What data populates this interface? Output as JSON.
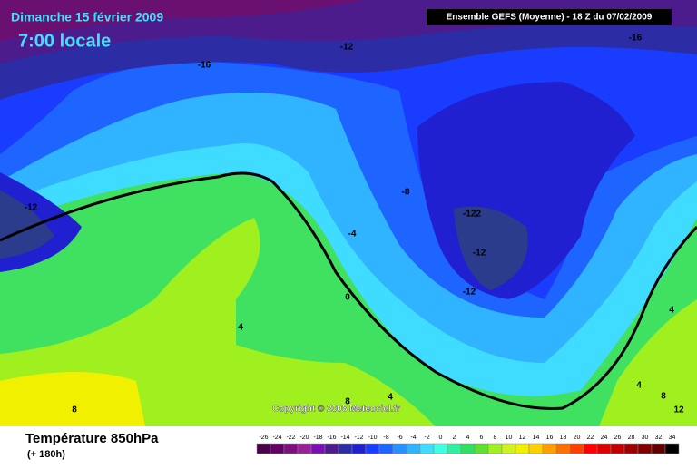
{
  "header": {
    "date": "Dimanche 15 février 2009",
    "time": "7:00 locale",
    "run": "Ensemble GEFS (Moyenne)  - 18 Z du 07/02/2009"
  },
  "map": {
    "contour_labels": [
      -16,
      -12,
      -16,
      -12,
      -8,
      -4,
      -122,
      -12,
      -12,
      0,
      4,
      4,
      4,
      4,
      8,
      8,
      8,
      12
    ],
    "copyright": "Copyright © 2008 Meteociel.fr"
  },
  "footer": {
    "title": "Température 850hPa",
    "lead": "(+ 180h)"
  },
  "scale": {
    "labels": [
      -26,
      -24,
      -22,
      -20,
      -18,
      -16,
      -14,
      -12,
      -10,
      -8,
      -6,
      -4,
      -2,
      0,
      2,
      4,
      6,
      8,
      10,
      12,
      14,
      16,
      18,
      20,
      22,
      24,
      26,
      28,
      30,
      32,
      34
    ],
    "colors": [
      "#4a004a",
      "#640064",
      "#7e107e",
      "#9a209a",
      "#7a10b4",
      "#4c1c8c",
      "#2c2ca4",
      "#2020d0",
      "#1a3cff",
      "#1e64ff",
      "#2890ff",
      "#30b4ff",
      "#40dcff",
      "#40ffe0",
      "#30f0a0",
      "#30e060",
      "#60e030",
      "#a0f020",
      "#d0f020",
      "#f0f000",
      "#ffd000",
      "#ffa000",
      "#ff7000",
      "#ff4000",
      "#ff0000",
      "#e00000",
      "#c00000",
      "#a00000",
      "#800000",
      "#600000",
      "#000000"
    ]
  }
}
